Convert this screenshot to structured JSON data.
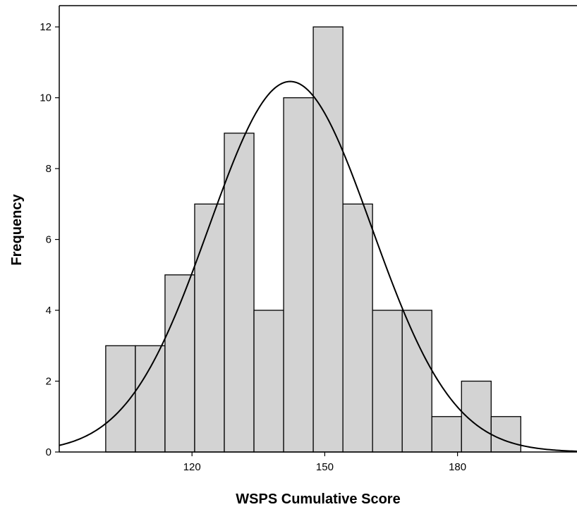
{
  "chart_data": {
    "type": "bar",
    "subtype": "histogram",
    "xlabel": "WSPS Cumulative Score",
    "ylabel": "Frequency",
    "bin_width": 6.7,
    "bin_starts": [
      100.5,
      107.2,
      113.9,
      120.6,
      127.3,
      134.0,
      140.7,
      147.4,
      154.1,
      160.8,
      167.5,
      174.2,
      180.9,
      187.6
    ],
    "values": [
      3,
      3,
      5,
      7,
      9,
      4,
      10,
      12,
      7,
      4,
      4,
      1,
      2,
      1
    ],
    "xlim": [
      90,
      207
    ],
    "ylim": [
      0,
      12.6
    ],
    "x_ticks": [
      120,
      150,
      180
    ],
    "y_ticks": [
      0,
      2,
      4,
      6,
      8,
      10,
      12
    ],
    "normal_curve": {
      "mean": 142.2,
      "std": 18.4,
      "n": 72
    },
    "bar_color": "#d3d3d3",
    "bar_edge_color": "#000000",
    "curve_color": "#000000",
    "grid": false
  }
}
